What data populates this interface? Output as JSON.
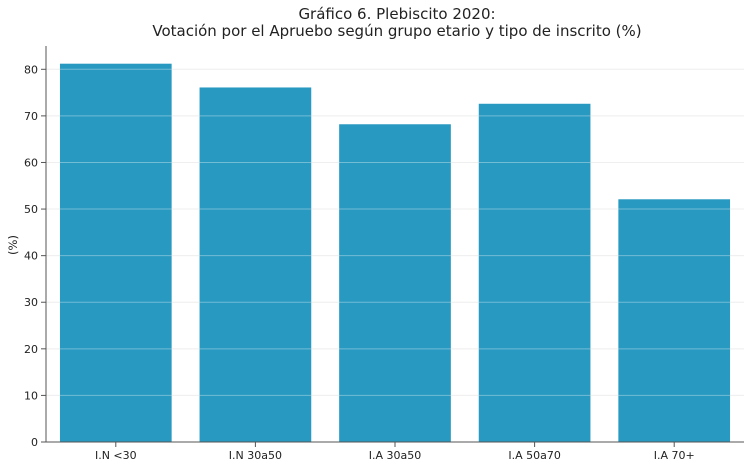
{
  "chart_data": {
    "type": "bar",
    "title": "Gráfico 6. Plebiscito 2020:",
    "subtitle": "Votación por el Apruebo según grupo etario y tipo de inscrito (%)",
    "xlabel": "",
    "ylabel": "(%)",
    "categories": [
      "I.N <30",
      "I.N 30a50",
      "I.A 30a50",
      "I.A 50a70",
      "I.A 70+"
    ],
    "values": [
      81.2,
      76.1,
      68.2,
      72.6,
      52.1
    ],
    "ylim": [
      0,
      85
    ],
    "yticks": [
      0,
      10,
      20,
      30,
      40,
      50,
      60,
      70,
      80
    ],
    "grid": true,
    "bar_color": "#2899c0",
    "legend": "none"
  }
}
